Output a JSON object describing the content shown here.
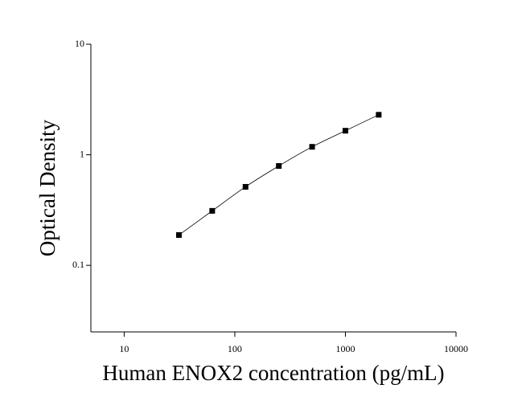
{
  "chart_data": {
    "type": "scatter",
    "x_label": "Human ENOX2 concentration (pg/mL)",
    "y_label": "Optical Density",
    "x": [
      31.25,
      62.5,
      125,
      250,
      500,
      1000,
      2000
    ],
    "values": [
      0.188,
      0.311,
      0.513,
      0.792,
      1.18,
      1.65,
      2.3
    ],
    "color": "#000000",
    "fit_line": true,
    "x_log": true,
    "y_log": true,
    "xlim": [
      5,
      10000
    ],
    "ylim": [
      0.025,
      10
    ],
    "xticks": [
      10,
      100,
      1000,
      10000
    ],
    "yticks": [
      0.1,
      1,
      10
    ]
  }
}
